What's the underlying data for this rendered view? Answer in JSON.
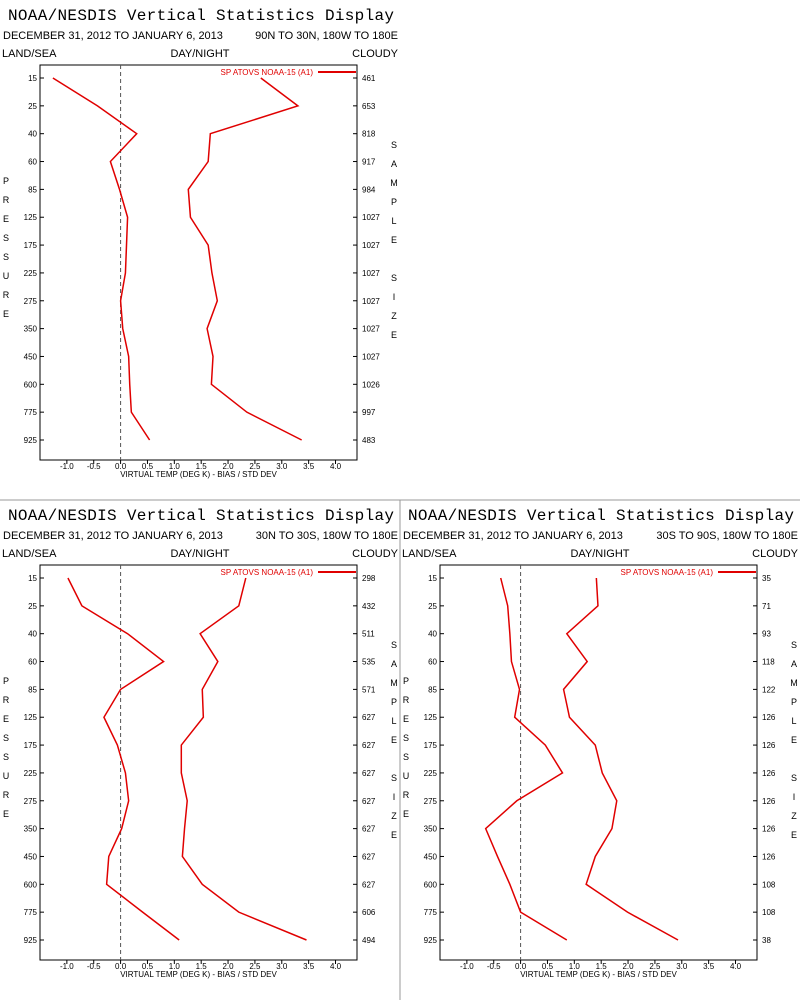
{
  "chart_data": [
    {
      "type": "line",
      "title": "NOAA/NESDIS Vertical Statistics Display",
      "date_range": "DECEMBER 31, 2012 TO JANUARY 6, 2013",
      "region": "90N TO 30N, 180W TO 180E",
      "land_sea": "LAND/SEA",
      "day_night": "DAY/NIGHT",
      "cloudy": "CLOUDY",
      "y_label": "PRESSURE",
      "y2_label": "SAMPLE SIZE",
      "x_label": "VIRTUAL TEMP (DEG K) - BIAS / STD DEV",
      "categories": [
        "15",
        "25",
        "40",
        "60",
        "85",
        "125",
        "175",
        "225",
        "275",
        "350",
        "450",
        "600",
        "775",
        "925"
      ],
      "sample_size": [
        "461",
        "653",
        "818",
        "917",
        "984",
        "1027",
        "1027",
        "1027",
        "1027",
        "1027",
        "1027",
        "1026",
        "997",
        "483"
      ],
      "xlim": [
        -1.5,
        4.4
      ],
      "xticks": [
        {
          "value": -1,
          "label": "-1.0"
        },
        {
          "value": -0.5,
          "label": "-0.5"
        },
        {
          "value": 0,
          "label": "0.0"
        },
        {
          "value": 0.5,
          "label": "0.5"
        },
        {
          "value": 1,
          "label": "1.0"
        },
        {
          "value": 1.5,
          "label": "1.5"
        },
        {
          "value": 2,
          "label": "2.0"
        },
        {
          "value": 2.5,
          "label": "2.5"
        },
        {
          "value": 3,
          "label": "3.0"
        },
        {
          "value": 3.5,
          "label": "3.5"
        },
        {
          "value": 4,
          "label": "4.0"
        }
      ],
      "series": [
        {
          "name": "SP ATOVS NOAA-15 (A1)",
          "color": "#e00000",
          "bias": [
            -1.26,
            -0.43,
            0.3,
            -0.19,
            -0.02,
            0.13,
            0.11,
            0.09,
            0.0,
            0.04,
            0.15,
            0.17,
            0.2,
            0.54
          ],
          "std_dev": [
            2.61,
            3.3,
            1.67,
            1.63,
            1.26,
            1.3,
            1.63,
            1.7,
            1.8,
            1.61,
            1.72,
            1.69,
            2.35,
            3.37
          ]
        }
      ]
    },
    {
      "type": "line",
      "title": "NOAA/NESDIS Vertical Statistics Display",
      "date_range": "DECEMBER 31, 2012 TO JANUARY 6, 2013",
      "region": "30N TO 30S, 180W TO 180E",
      "land_sea": "LAND/SEA",
      "day_night": "DAY/NIGHT",
      "cloudy": "CLOUDY",
      "y_label": "PRESSURE",
      "y2_label": "SAMPLE SIZE",
      "x_label": "VIRTUAL TEMP (DEG K) - BIAS / STD DEV",
      "categories": [
        "15",
        "25",
        "40",
        "60",
        "85",
        "125",
        "175",
        "225",
        "275",
        "350",
        "450",
        "600",
        "775",
        "925"
      ],
      "sample_size": [
        "298",
        "432",
        "511",
        "535",
        "571",
        "627",
        "627",
        "627",
        "627",
        "627",
        "627",
        "627",
        "606",
        "494"
      ],
      "xlim": [
        -1.5,
        4.4
      ],
      "xticks": [
        {
          "value": -1,
          "label": "-1.0"
        },
        {
          "value": -0.5,
          "label": "-0.5"
        },
        {
          "value": 0,
          "label": "0.0"
        },
        {
          "value": 0.5,
          "label": "0.5"
        },
        {
          "value": 1,
          "label": "1.0"
        },
        {
          "value": 1.5,
          "label": "1.5"
        },
        {
          "value": 2,
          "label": "2.0"
        },
        {
          "value": 2.5,
          "label": "2.5"
        },
        {
          "value": 3,
          "label": "3.0"
        },
        {
          "value": 3.5,
          "label": "3.5"
        },
        {
          "value": 4,
          "label": "4.0"
        }
      ],
      "series": [
        {
          "name": "SP ATOVS NOAA-15 (A1)",
          "color": "#e00000",
          "bias": [
            -0.98,
            -0.72,
            0.13,
            0.8,
            0.0,
            -0.31,
            -0.06,
            0.09,
            0.15,
            0.02,
            -0.22,
            -0.26,
            0.41,
            1.09
          ],
          "std_dev": [
            2.33,
            2.2,
            1.48,
            1.81,
            1.52,
            1.54,
            1.13,
            1.13,
            1.24,
            1.19,
            1.15,
            1.52,
            2.2,
            3.46
          ]
        }
      ]
    },
    {
      "type": "line",
      "title": "NOAA/NESDIS Vertical Statistics Display",
      "date_range": "DECEMBER 31, 2012 TO JANUARY 6, 2013",
      "region": "30S TO 90S, 180W TO 180E",
      "land_sea": "LAND/SEA",
      "day_night": "DAY/NIGHT",
      "cloudy": "CLOUDY",
      "y_label": "PRESSURE",
      "y2_label": "SAMPLE SIZE",
      "x_label": "VIRTUAL TEMP (DEG K) - BIAS / STD DEV",
      "categories": [
        "15",
        "25",
        "40",
        "60",
        "85",
        "125",
        "175",
        "225",
        "275",
        "350",
        "450",
        "600",
        "775",
        "925"
      ],
      "sample_size": [
        "35",
        "71",
        "93",
        "118",
        "122",
        "126",
        "126",
        "126",
        "126",
        "126",
        "126",
        "108",
        "108",
        "38"
      ],
      "xlim": [
        -1.5,
        4.4
      ],
      "xticks": [
        {
          "value": -1,
          "label": "-1.0"
        },
        {
          "value": -0.5,
          "label": "-0.5"
        },
        {
          "value": 0,
          "label": "0.0"
        },
        {
          "value": 0.5,
          "label": "0.5"
        },
        {
          "value": 1,
          "label": "1.0"
        },
        {
          "value": 1.5,
          "label": "1.5"
        },
        {
          "value": 2,
          "label": "2.0"
        },
        {
          "value": 2.5,
          "label": "2.5"
        },
        {
          "value": 3,
          "label": "3.0"
        },
        {
          "value": 3.5,
          "label": "3.5"
        },
        {
          "value": 4,
          "label": "4.0"
        }
      ],
      "series": [
        {
          "name": "SP ATOVS NOAA-15 (A1)",
          "color": "#e00000",
          "bias": [
            -0.37,
            -0.24,
            -0.2,
            -0.17,
            -0.02,
            -0.11,
            0.46,
            0.78,
            -0.07,
            -0.65,
            -0.43,
            -0.2,
            0.0,
            0.86
          ],
          "std_dev": [
            1.41,
            1.44,
            0.86,
            1.24,
            0.8,
            0.91,
            1.39,
            1.52,
            1.79,
            1.7,
            1.39,
            1.22,
            1.99,
            2.93
          ]
        }
      ]
    }
  ]
}
